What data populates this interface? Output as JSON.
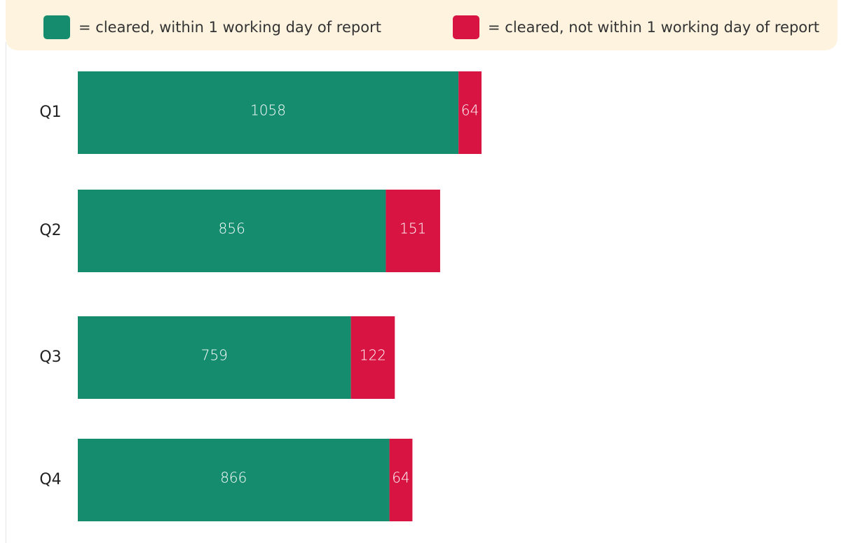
{
  "chart_data": {
    "type": "stacked-bar-horizontal",
    "categories": [
      "Q1",
      "Q2",
      "Q3",
      "Q4"
    ],
    "series": [
      {
        "name": "= cleared, within 1 working day of report",
        "color": "#158c6e",
        "values": [
          1058,
          856,
          759,
          866
        ]
      },
      {
        "name": "= cleared, not within 1 working day of report",
        "color": "#d81442",
        "values": [
          64,
          151,
          122,
          64
        ]
      }
    ]
  }
}
